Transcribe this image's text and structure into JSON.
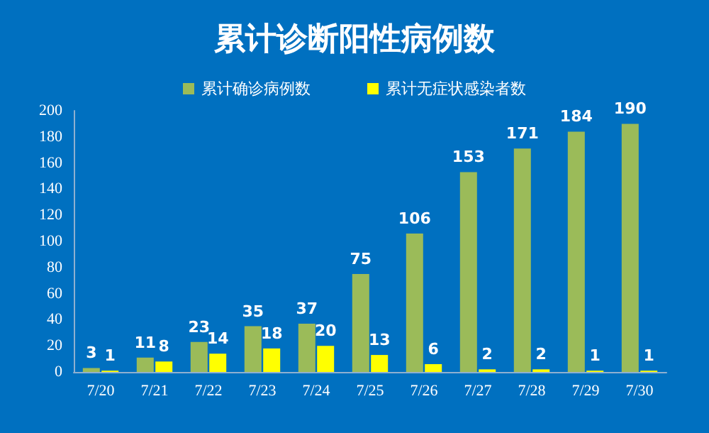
{
  "chart_data": {
    "type": "bar",
    "title": "累计诊断阳性病例数",
    "categories": [
      "7/20",
      "7/21",
      "7/22",
      "7/23",
      "7/24",
      "7/25",
      "7/26",
      "7/27",
      "7/28",
      "7/29",
      "7/30"
    ],
    "series": [
      {
        "name": "累计确诊病例数",
        "color": "#9bbb59",
        "values": [
          3,
          11,
          23,
          35,
          37,
          75,
          106,
          153,
          171,
          184,
          190
        ]
      },
      {
        "name": "累计无症状感染者数",
        "color": "#ffff00",
        "values": [
          1,
          8,
          14,
          18,
          20,
          13,
          6,
          2,
          2,
          1,
          1
        ]
      }
    ],
    "ylim": [
      0,
      200
    ],
    "yticks": [
      0,
      20,
      40,
      60,
      80,
      100,
      120,
      140,
      160,
      180,
      200
    ],
    "data_labels": true,
    "grid": false,
    "legend": "top"
  }
}
